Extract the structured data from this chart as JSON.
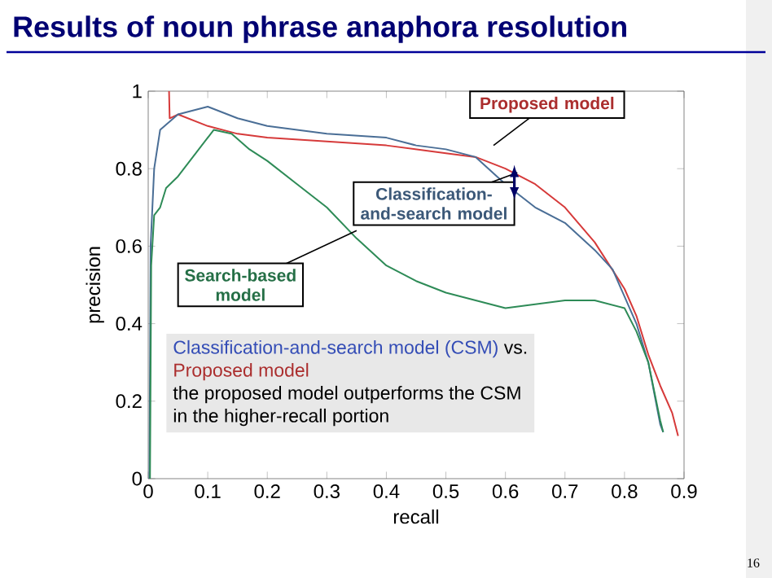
{
  "chart_data": {
    "type": "line",
    "title": "Results of noun phrase anaphora resolution",
    "xlabel": "recall",
    "ylabel": "precision",
    "xlim": [
      0,
      0.9
    ],
    "ylim": [
      0,
      1
    ],
    "xticks": [
      0,
      0.1,
      0.2,
      0.3,
      0.4,
      0.5,
      0.6,
      0.7,
      0.8,
      0.9
    ],
    "yticks": [
      0,
      0.2,
      0.4,
      0.6,
      0.8,
      1
    ],
    "grid": false,
    "marker": "none",
    "line_style": "solid",
    "series": [
      {
        "name": "Proposed model",
        "color": "#d63a3a",
        "x": [
          0.035,
          0.036,
          0.05,
          0.1,
          0.15,
          0.2,
          0.3,
          0.4,
          0.5,
          0.55,
          0.6,
          0.65,
          0.7,
          0.75,
          0.8,
          0.82,
          0.84,
          0.86,
          0.88,
          0.89
        ],
        "values": [
          1.0,
          0.93,
          0.94,
          0.91,
          0.89,
          0.88,
          0.87,
          0.86,
          0.84,
          0.83,
          0.8,
          0.76,
          0.7,
          0.61,
          0.49,
          0.42,
          0.32,
          0.24,
          0.17,
          0.11
        ]
      },
      {
        "name": "Classification-and-search model",
        "color": "#4a6e96",
        "x": [
          0.002,
          0.004,
          0.01,
          0.02,
          0.05,
          0.1,
          0.15,
          0.2,
          0.3,
          0.4,
          0.45,
          0.5,
          0.55,
          0.6,
          0.65,
          0.7,
          0.75,
          0.78,
          0.8,
          0.82,
          0.84,
          0.85,
          0.86,
          0.865
        ],
        "values": [
          0.0,
          0.6,
          0.8,
          0.9,
          0.94,
          0.96,
          0.93,
          0.91,
          0.89,
          0.88,
          0.86,
          0.85,
          0.83,
          0.76,
          0.7,
          0.66,
          0.59,
          0.54,
          0.47,
          0.4,
          0.3,
          0.22,
          0.14,
          0.12
        ]
      },
      {
        "name": "Search-based model",
        "color": "#2e8b57",
        "x": [
          0.003,
          0.005,
          0.01,
          0.02,
          0.03,
          0.05,
          0.08,
          0.11,
          0.14,
          0.17,
          0.2,
          0.25,
          0.3,
          0.35,
          0.4,
          0.45,
          0.5,
          0.55,
          0.6,
          0.65,
          0.7,
          0.75,
          0.8,
          0.82,
          0.84,
          0.86,
          0.865
        ],
        "values": [
          0.0,
          0.55,
          0.68,
          0.7,
          0.75,
          0.78,
          0.84,
          0.9,
          0.89,
          0.85,
          0.82,
          0.76,
          0.7,
          0.62,
          0.55,
          0.51,
          0.48,
          0.46,
          0.44,
          0.45,
          0.46,
          0.46,
          0.44,
          0.38,
          0.3,
          0.15,
          0.12
        ]
      }
    ],
    "annotations": [
      "Classification-and-search model (CSM)",
      "vs.",
      "Proposed model",
      "the proposed model outperforms the CSM",
      "in the higher-recall portion",
      "16"
    ]
  }
}
